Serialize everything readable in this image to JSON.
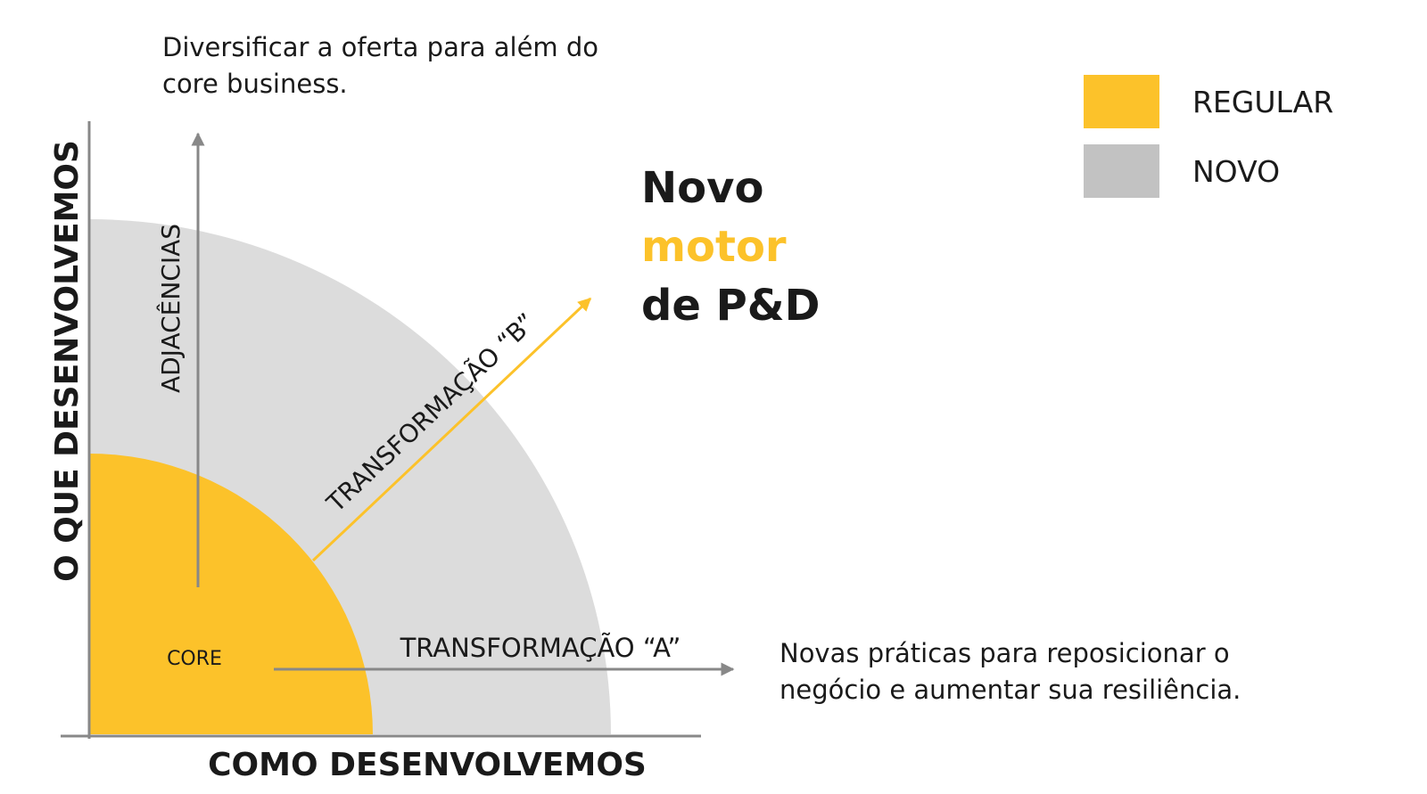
{
  "colors": {
    "regular": "#fcc22a",
    "novo": "#dcdcdc",
    "legend_novo": "#c2c2c2",
    "axis": "#888888",
    "text": "#1a1a1a"
  },
  "notes": {
    "top": [
      "Diversificar a oferta para além do",
      "core business."
    ],
    "right": [
      "Novas práticas para reposicionar o",
      "negócio e aumentar sua resiliência."
    ]
  },
  "headline": {
    "line1": "Novo",
    "line2": "motor",
    "line3": "de P&D"
  },
  "legend": {
    "items": [
      {
        "label": "REGULAR",
        "color": "#fcc22a"
      },
      {
        "label": "NOVO",
        "color": "#c2c2c2"
      }
    ]
  },
  "axes": {
    "y_label": "O QUE DESENVOLVEMOS",
    "x_label": "COMO DESENVOLVEMOS"
  },
  "arrows": {
    "vertical": "ADJACÊNCIAS",
    "diagonal": "TRANSFORMAÇÃO “B”",
    "horizontal": "TRANSFORMAÇÃO “A”"
  },
  "regions": {
    "core": "CORE"
  }
}
